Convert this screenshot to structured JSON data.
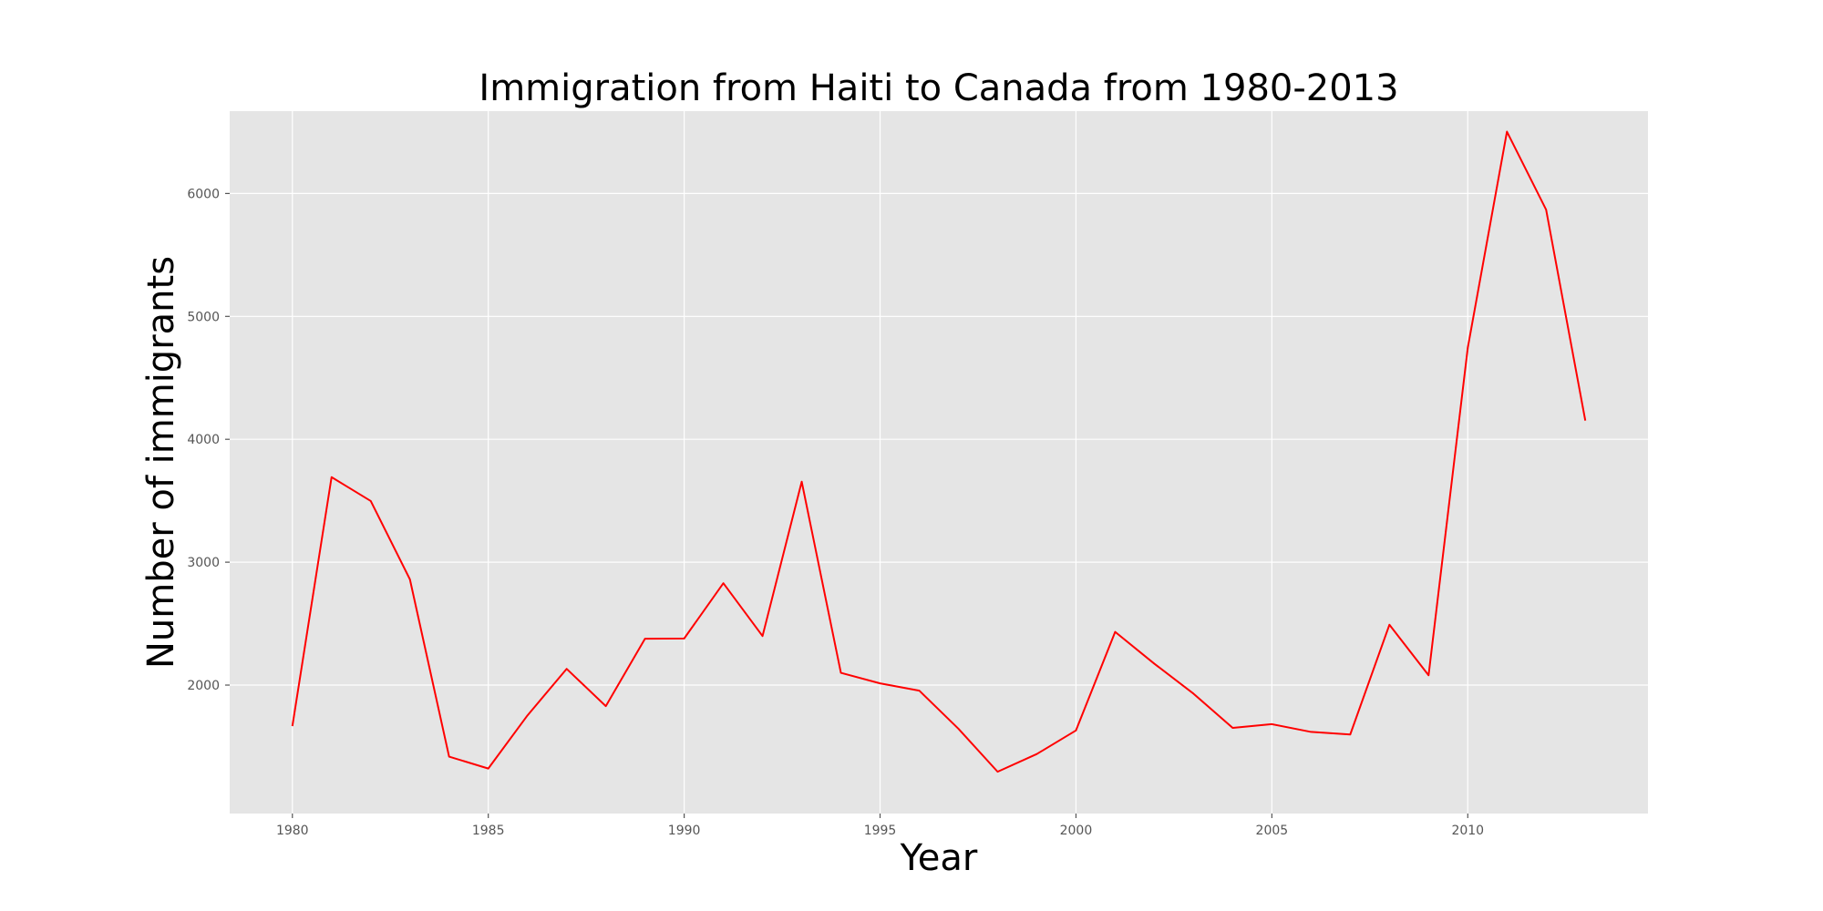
{
  "chart_data": {
    "type": "line",
    "title": "Immigration from Haiti to Canada from 1980-2013",
    "xlabel": "Year",
    "ylabel": "Number of immigrants",
    "xlim": [
      1978.4,
      2014.6
    ],
    "ylim": [
      955,
      6670
    ],
    "xticks": [
      1980,
      1985,
      1990,
      1995,
      2000,
      2005,
      2010
    ],
    "yticks": [
      2000,
      3000,
      4000,
      5000,
      6000
    ],
    "grid": true,
    "colors": {
      "plot_background": "#e5e5e5",
      "grid": "#ffffff",
      "line": "#ff0000"
    },
    "series": [
      {
        "x": [
          1980,
          1981,
          1982,
          1983,
          1984,
          1985,
          1986,
          1987,
          1988,
          1989,
          1990,
          1991,
          1992,
          1993,
          1994,
          1995,
          1996,
          1997,
          1998,
          1999,
          2000,
          2001,
          2002,
          2003,
          2004,
          2005,
          2006,
          2007,
          2008,
          2009,
          2010,
          2011,
          2012,
          2013
        ],
        "values": [
          1666,
          3692,
          3498,
          2860,
          1418,
          1321,
          1753,
          2132,
          1829,
          2377,
          2379,
          2829,
          2399,
          3655,
          2100,
          2014,
          1955,
          1645,
          1295,
          1439,
          1631,
          2433,
          2174,
          1930,
          1652,
          1682,
          1619,
          1598,
          2491,
          2080,
          4744,
          6503,
          5868,
          4152
        ]
      }
    ]
  }
}
